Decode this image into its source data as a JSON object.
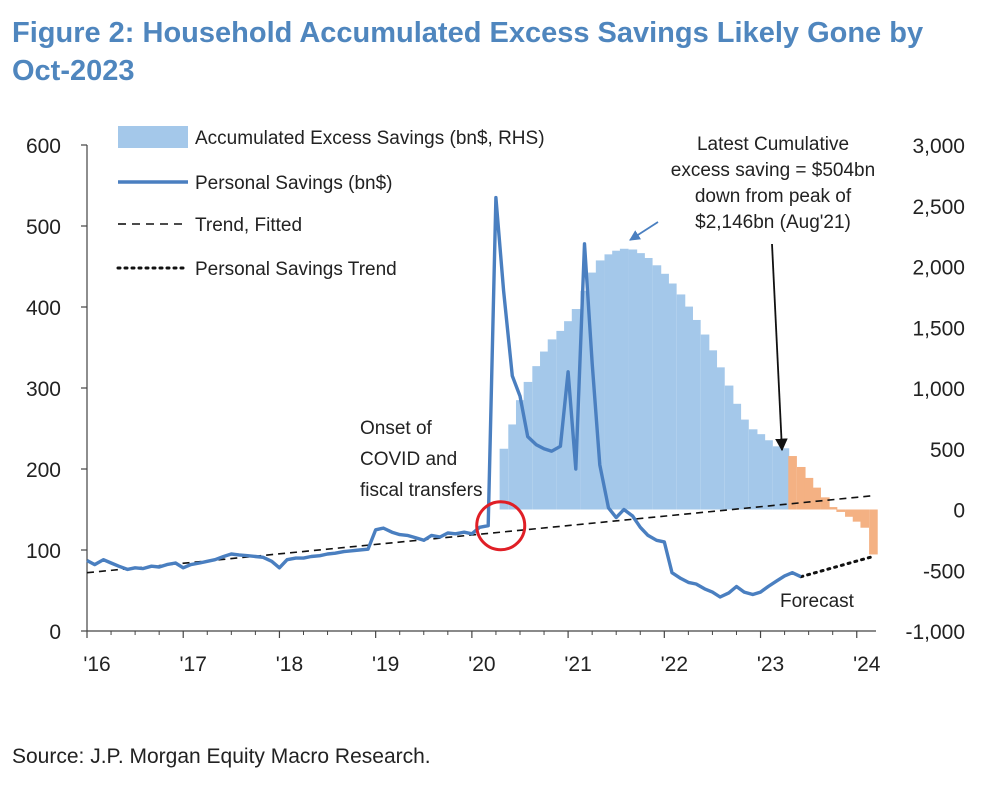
{
  "title": "Figure 2: Household Accumulated Excess Savings Likely Gone by Oct-2023",
  "source": "Source: J.P. Morgan Equity Macro Research.",
  "colors": {
    "excess": "#a4c8ea",
    "forecast_bars": "#f4b183",
    "personal": "#4a7fc0",
    "trend": "#111111",
    "highlight": "#e01f26",
    "title": "#4f86be"
  },
  "chart_data": {
    "type": "line",
    "xlabel": "",
    "ylabel": "",
    "y2label": "",
    "x_tick_labels": [
      "'16",
      "'17",
      "'18",
      "'19",
      "'20",
      "'21",
      "'22",
      "'23",
      "'24"
    ],
    "x_range": [
      2016.0,
      2024.2
    ],
    "ylim": [
      0,
      600
    ],
    "y_ticks": [
      "0",
      "100",
      "200",
      "300",
      "400",
      "500",
      "600"
    ],
    "y2lim": [
      -1000,
      3000
    ],
    "y2_ticks": [
      "-1,000",
      "-500",
      "0",
      "500",
      "1,000",
      "1,500",
      "2,000",
      "2,500",
      "3,000"
    ],
    "legend": [
      {
        "label": "Accumulated Excess Savings (bn$, RHS)",
        "style": "area"
      },
      {
        "label": "Personal Savings (bn$)",
        "style": "solid"
      },
      {
        "label": "Trend, Fitted",
        "style": "dashed"
      },
      {
        "label": "Personal Savings Trend",
        "style": "dotted"
      }
    ],
    "legend_position": "top-left",
    "series": [
      {
        "name": "Personal Savings (bn$)",
        "axis": "left",
        "points": [
          [
            2016.0,
            87
          ],
          [
            2016.08,
            82
          ],
          [
            2016.17,
            88
          ],
          [
            2016.25,
            84
          ],
          [
            2016.33,
            80
          ],
          [
            2016.42,
            76
          ],
          [
            2016.5,
            78
          ],
          [
            2016.58,
            77
          ],
          [
            2016.67,
            80
          ],
          [
            2016.75,
            79
          ],
          [
            2016.83,
            82
          ],
          [
            2016.92,
            84
          ],
          [
            2017.0,
            78
          ],
          [
            2017.08,
            82
          ],
          [
            2017.17,
            84
          ],
          [
            2017.25,
            86
          ],
          [
            2017.33,
            88
          ],
          [
            2017.42,
            92
          ],
          [
            2017.5,
            95
          ],
          [
            2017.58,
            94
          ],
          [
            2017.67,
            93
          ],
          [
            2017.75,
            92
          ],
          [
            2017.83,
            91
          ],
          [
            2017.92,
            86
          ],
          [
            2018.0,
            78
          ],
          [
            2018.08,
            88
          ],
          [
            2018.17,
            90
          ],
          [
            2018.25,
            90
          ],
          [
            2018.33,
            92
          ],
          [
            2018.42,
            93
          ],
          [
            2018.5,
            95
          ],
          [
            2018.58,
            96
          ],
          [
            2018.67,
            98
          ],
          [
            2018.75,
            99
          ],
          [
            2018.83,
            100
          ],
          [
            2018.92,
            101
          ],
          [
            2019.0,
            125
          ],
          [
            2019.08,
            127
          ],
          [
            2019.17,
            122
          ],
          [
            2019.25,
            119
          ],
          [
            2019.33,
            118
          ],
          [
            2019.42,
            115
          ],
          [
            2019.5,
            112
          ],
          [
            2019.58,
            118
          ],
          [
            2019.67,
            116
          ],
          [
            2019.75,
            121
          ],
          [
            2019.83,
            120
          ],
          [
            2019.92,
            122
          ],
          [
            2020.0,
            120
          ],
          [
            2020.08,
            128
          ],
          [
            2020.17,
            130
          ],
          [
            2020.25,
            535
          ],
          [
            2020.33,
            420
          ],
          [
            2020.42,
            315
          ],
          [
            2020.5,
            290
          ],
          [
            2020.58,
            240
          ],
          [
            2020.67,
            230
          ],
          [
            2020.75,
            225
          ],
          [
            2020.83,
            222
          ],
          [
            2020.92,
            228
          ],
          [
            2021.0,
            320
          ],
          [
            2021.08,
            200
          ],
          [
            2021.17,
            478
          ],
          [
            2021.25,
            330
          ],
          [
            2021.33,
            205
          ],
          [
            2021.42,
            152
          ],
          [
            2021.5,
            140
          ],
          [
            2021.58,
            150
          ],
          [
            2021.67,
            142
          ],
          [
            2021.75,
            128
          ],
          [
            2021.83,
            118
          ],
          [
            2021.92,
            112
          ],
          [
            2022.0,
            110
          ],
          [
            2022.08,
            72
          ],
          [
            2022.17,
            65
          ],
          [
            2022.25,
            60
          ],
          [
            2022.33,
            58
          ],
          [
            2022.42,
            52
          ],
          [
            2022.5,
            48
          ],
          [
            2022.58,
            42
          ],
          [
            2022.67,
            47
          ],
          [
            2022.75,
            55
          ],
          [
            2022.83,
            48
          ],
          [
            2022.92,
            45
          ],
          [
            2023.0,
            48
          ],
          [
            2023.08,
            55
          ],
          [
            2023.17,
            62
          ],
          [
            2023.25,
            68
          ],
          [
            2023.33,
            72
          ],
          [
            2023.42,
            67
          ]
        ]
      },
      {
        "name": "Trend, Fitted",
        "axis": "left",
        "points": [
          [
            2016.0,
            72
          ],
          [
            2024.17,
            167
          ]
        ]
      },
      {
        "name": "Personal Savings Trend",
        "axis": "left",
        "points": [
          [
            2023.42,
            67
          ],
          [
            2024.17,
            92
          ]
        ]
      },
      {
        "name": "Accumulated Excess Savings (bn$, RHS)",
        "axis": "right",
        "points": [
          [
            2020.25,
            0
          ],
          [
            2020.33,
            500
          ],
          [
            2020.42,
            700
          ],
          [
            2020.5,
            900
          ],
          [
            2020.58,
            1050
          ],
          [
            2020.67,
            1180
          ],
          [
            2020.75,
            1300
          ],
          [
            2020.83,
            1400
          ],
          [
            2020.92,
            1470
          ],
          [
            2021.0,
            1550
          ],
          [
            2021.08,
            1650
          ],
          [
            2021.17,
            1800
          ],
          [
            2021.25,
            1950
          ],
          [
            2021.33,
            2050
          ],
          [
            2021.42,
            2100
          ],
          [
            2021.5,
            2130
          ],
          [
            2021.58,
            2146
          ],
          [
            2021.67,
            2140
          ],
          [
            2021.75,
            2110
          ],
          [
            2021.83,
            2070
          ],
          [
            2021.92,
            2010
          ],
          [
            2022.0,
            1940
          ],
          [
            2022.08,
            1860
          ],
          [
            2022.17,
            1770
          ],
          [
            2022.25,
            1670
          ],
          [
            2022.33,
            1560
          ],
          [
            2022.42,
            1440
          ],
          [
            2022.5,
            1310
          ],
          [
            2022.58,
            1170
          ],
          [
            2022.67,
            1020
          ],
          [
            2022.75,
            870
          ],
          [
            2022.83,
            740
          ],
          [
            2022.92,
            660
          ],
          [
            2023.0,
            620
          ],
          [
            2023.08,
            570
          ],
          [
            2023.17,
            520
          ],
          [
            2023.25,
            504
          ]
        ]
      },
      {
        "name": "Accumulated Excess Savings forecast",
        "axis": "right",
        "points": [
          [
            2023.33,
            440
          ],
          [
            2023.42,
            350
          ],
          [
            2023.5,
            260
          ],
          [
            2023.58,
            180
          ],
          [
            2023.67,
            100
          ],
          [
            2023.75,
            20
          ],
          [
            2023.83,
            -20
          ],
          [
            2023.92,
            -60
          ],
          [
            2024.0,
            -100
          ],
          [
            2024.08,
            -150
          ],
          [
            2024.17,
            -370
          ]
        ]
      }
    ],
    "annotations": {
      "latest": [
        "Latest Cumulative",
        "excess saving = $504bn",
        "down from peak of",
        "$2,146bn (Aug'21)"
      ],
      "onset": [
        "Onset of",
        "COVID and",
        "fiscal transfers"
      ],
      "forecast": "Forecast"
    }
  }
}
